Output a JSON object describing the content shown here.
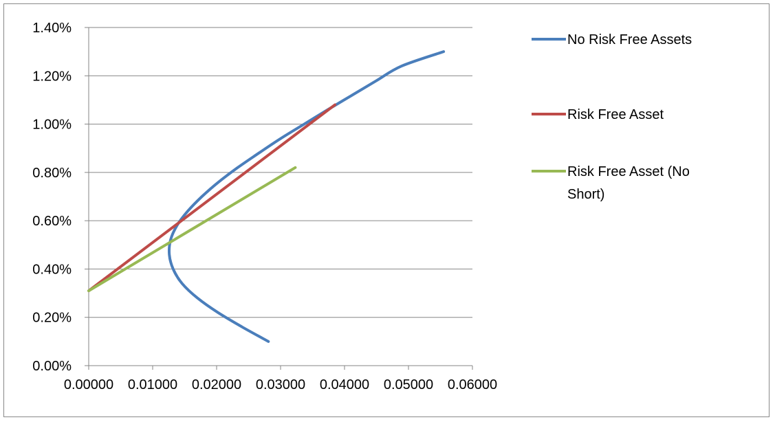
{
  "chart_data": {
    "type": "line",
    "title": "",
    "xlabel": "",
    "ylabel": "",
    "xlim": [
      0,
      0.06
    ],
    "ylim": [
      0,
      0.014
    ],
    "x_ticks": [
      {
        "value": 0.0,
        "label": "0.00000"
      },
      {
        "value": 0.01,
        "label": "0.01000"
      },
      {
        "value": 0.02,
        "label": "0.02000"
      },
      {
        "value": 0.03,
        "label": "0.03000"
      },
      {
        "value": 0.04,
        "label": "0.04000"
      },
      {
        "value": 0.05,
        "label": "0.05000"
      },
      {
        "value": 0.06,
        "label": "0.06000"
      }
    ],
    "y_ticks": [
      {
        "value": 0.0,
        "label": "0.00%"
      },
      {
        "value": 0.002,
        "label": "0.20%"
      },
      {
        "value": 0.004,
        "label": "0.40%"
      },
      {
        "value": 0.006,
        "label": "0.60%"
      },
      {
        "value": 0.008,
        "label": "0.80%"
      },
      {
        "value": 0.01,
        "label": "1.00%"
      },
      {
        "value": 0.012,
        "label": "1.20%"
      },
      {
        "value": 0.014,
        "label": "1.40%"
      }
    ],
    "grid": "horizontal",
    "legend_position": "right",
    "series": [
      {
        "name": "No Risk Free Assets",
        "color": "#4a7ebb",
        "points": [
          [
            0.0281,
            0.001
          ],
          [
            0.024,
            0.0016
          ],
          [
            0.0202,
            0.0022
          ],
          [
            0.017,
            0.0028
          ],
          [
            0.0146,
            0.0034
          ],
          [
            0.0132,
            0.004
          ],
          [
            0.0126,
            0.0046
          ],
          [
            0.0128,
            0.0052
          ],
          [
            0.0138,
            0.0058
          ],
          [
            0.0155,
            0.0064
          ],
          [
            0.0177,
            0.007
          ],
          [
            0.0203,
            0.0076
          ],
          [
            0.0233,
            0.0082
          ],
          [
            0.0266,
            0.0088
          ],
          [
            0.03,
            0.0094
          ],
          [
            0.0337,
            0.01
          ],
          [
            0.0374,
            0.0106
          ],
          [
            0.0412,
            0.0112
          ],
          [
            0.045,
            0.0118
          ],
          [
            0.0489,
            0.0124
          ],
          [
            0.0555,
            0.013
          ]
        ]
      },
      {
        "name": "Risk Free Asset",
        "color": "#be4b48",
        "points": [
          [
            0.0,
            0.0031
          ],
          [
            0.0385,
            0.0108
          ]
        ]
      },
      {
        "name": "Risk Free Asset (No Short)",
        "color": "#98b954",
        "points": [
          [
            0.0,
            0.0031
          ],
          [
            0.0323,
            0.0082
          ]
        ]
      }
    ],
    "legend": [
      {
        "name": "No Risk Free Assets",
        "color": "#4a7ebb",
        "lines": [
          "No Risk Free Assets"
        ]
      },
      {
        "name": "Risk Free Asset",
        "color": "#be4b48",
        "lines": [
          "Risk Free Asset"
        ]
      },
      {
        "name": "Risk Free Asset (No Short)",
        "color": "#98b954",
        "lines": [
          "Risk Free Asset (No",
          "Short)"
        ]
      }
    ]
  }
}
